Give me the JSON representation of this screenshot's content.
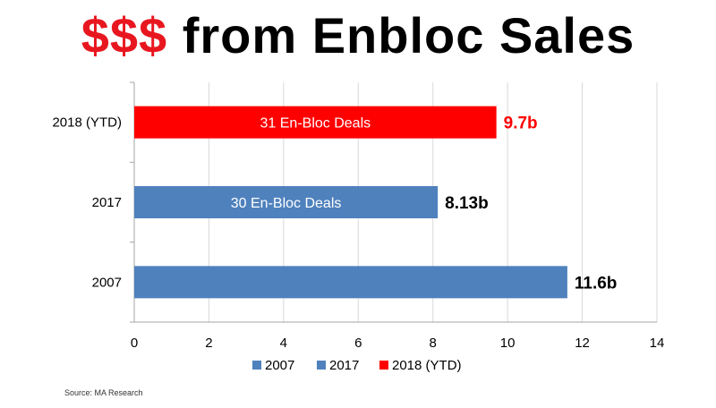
{
  "title": {
    "accent": "$$$",
    "rest": "from Enbloc Sales"
  },
  "colors": {
    "accent": "#e8171f",
    "blue": "#4f81bd",
    "red": "#ff0000",
    "grid": "#d9d9d9",
    "axis": "#a6a6a6"
  },
  "chart_data": {
    "type": "bar",
    "orientation": "horizontal",
    "categories": [
      "2018 (YTD)",
      "2017",
      "2007"
    ],
    "values": [
      9.7,
      8.13,
      11.6
    ],
    "series": [
      {
        "name": "2007",
        "category": "2007",
        "value": 11.6,
        "color": "#4f81bd"
      },
      {
        "name": "2017",
        "category": "2017",
        "value": 8.13,
        "color": "#4f81bd"
      },
      {
        "name": "2018 (YTD)",
        "category": "2018 (YTD)",
        "value": 9.7,
        "color": "#ff0000"
      }
    ],
    "bar_labels": {
      "2018 (YTD)": "31 En-Bloc Deals",
      "2017": "30 En-Bloc Deals"
    },
    "value_labels": {
      "2018 (YTD)": "9.7b",
      "2017": "8.13b",
      "2007": "11.6b"
    },
    "xlim": [
      0,
      14
    ],
    "xticks": [
      "0",
      "2",
      "4",
      "6",
      "8",
      "10",
      "12",
      "14"
    ],
    "grid": true,
    "legend_position": "bottom",
    "xlabel": "",
    "ylabel": ""
  },
  "source": "Source: MA Research"
}
